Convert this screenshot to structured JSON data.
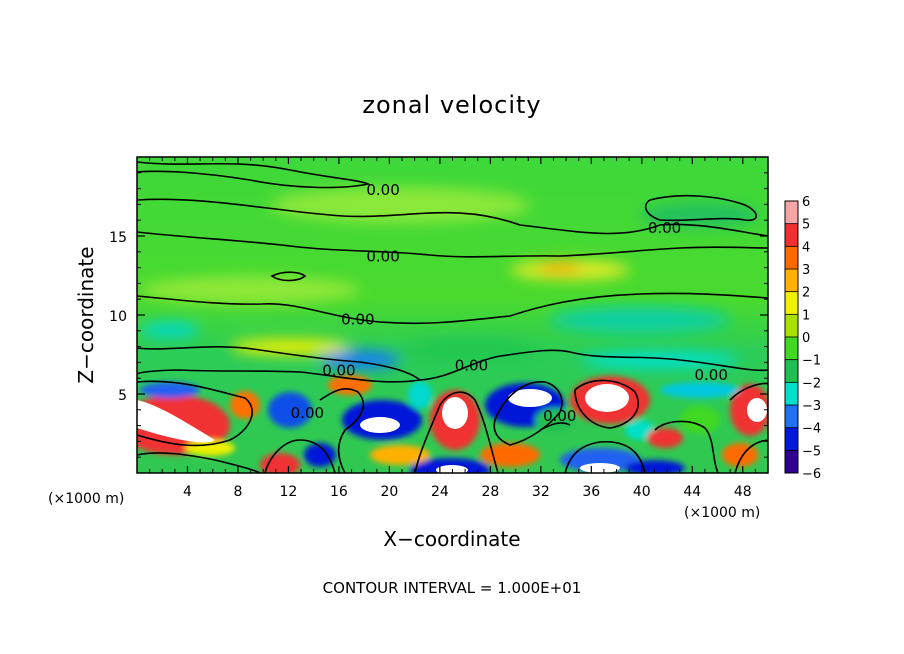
{
  "chart_data": {
    "type": "heatmap",
    "title": "zonal velocity",
    "xlabel": "X−coordinate",
    "ylabel": "Z−coordinate",
    "x_unit": "(×1000 m)",
    "x_unit_right": "(×1000 m)",
    "xlim": [
      0,
      50
    ],
    "ylim": [
      0,
      20
    ],
    "xticks": [
      "4",
      "8",
      "12",
      "16",
      "20",
      "24",
      "28",
      "32",
      "36",
      "40",
      "44",
      "48"
    ],
    "xtick_values": [
      4,
      8,
      12,
      16,
      20,
      24,
      28,
      32,
      36,
      40,
      44,
      48
    ],
    "yticks": [
      "5",
      "10",
      "15"
    ],
    "ytick_values": [
      5,
      10,
      15
    ],
    "colorbar": {
      "levels": [
        "6",
        "5",
        "4",
        "3",
        "2",
        "1",
        "0",
        "−1",
        "−2",
        "−3",
        "−4",
        "−5",
        "−6"
      ],
      "level_values": [
        6,
        5,
        4,
        3,
        2,
        1,
        0,
        -1,
        -2,
        -3,
        -4,
        -5,
        -6
      ],
      "colors": [
        "#f4a6a6",
        "#f03030",
        "#ff6a00",
        "#ffb000",
        "#f0f000",
        "#a8e000",
        "#40d820",
        "#20c050",
        "#00e0c8",
        "#2070f0",
        "#0018d8",
        "#300090",
        "#8000a0"
      ]
    },
    "contour_label": "0.00",
    "contour_labels": [
      {
        "x": 19.5,
        "z": 17.9
      },
      {
        "x": 41.8,
        "z": 15.5
      },
      {
        "x": 19.5,
        "z": 13.7
      },
      {
        "x": 17.5,
        "z": 9.7
      },
      {
        "x": 16.0,
        "z": 6.5
      },
      {
        "x": 26.5,
        "z": 6.8
      },
      {
        "x": 45.5,
        "z": 6.2
      },
      {
        "x": 13.5,
        "z": 3.8
      },
      {
        "x": 33.5,
        "z": 3.6
      }
    ],
    "note": "CONTOUR INTERVAL = 1.000E+01"
  }
}
